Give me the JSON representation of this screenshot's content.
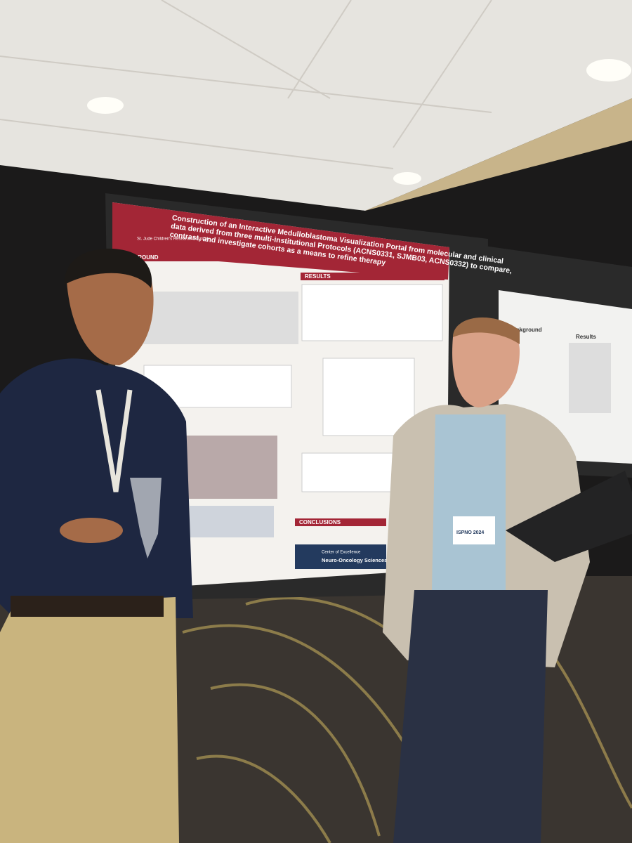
{
  "poster": {
    "logo": "St. Jude Children's Research Hospital",
    "title": "Construction of an Interactive Medulloblastoma Visualization Portal from molecular and clinical data derived from three multi-institutional Protocols (ACNS0331, SJMB03, ACNS0332) to compare, contrast, and investigate cohorts as a means to refine therapy",
    "sections": [
      "GROUND",
      "RESULTS",
      "CONCLUSIONS"
    ],
    "footer": [
      "Center of Excellence",
      "Neuro-Oncology Sciences"
    ]
  },
  "second_poster": {
    "headings": [
      "Background",
      "Results"
    ]
  },
  "badge": "ISPNO 2024"
}
